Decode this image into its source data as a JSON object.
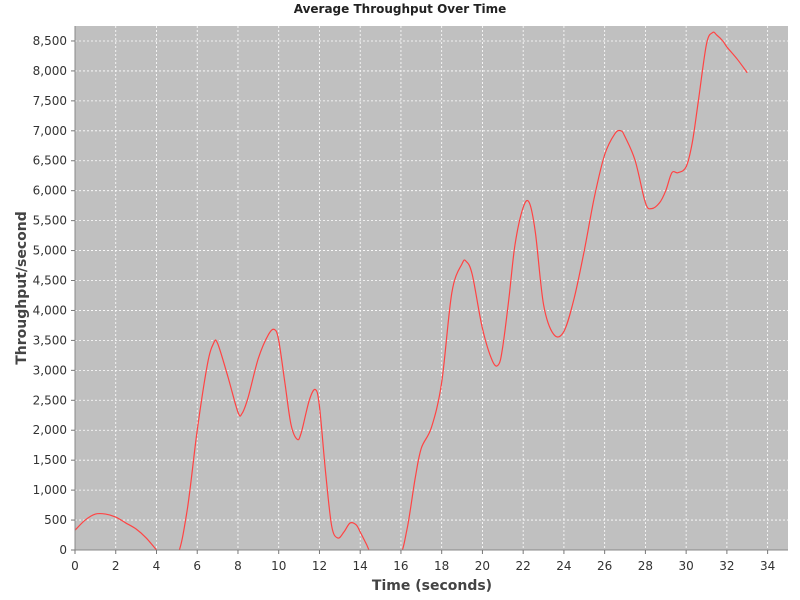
{
  "chart_data": {
    "type": "line",
    "title": "Average Throughput Over Time",
    "xlabel": "Time (seconds)",
    "ylabel": "Throughput/second",
    "xlim": [
      0,
      35
    ],
    "ylim": [
      0,
      8750
    ],
    "x_ticks": [
      0,
      2,
      4,
      6,
      8,
      10,
      12,
      14,
      16,
      18,
      20,
      22,
      24,
      26,
      28,
      30,
      32,
      34
    ],
    "x_tick_labels": [
      "0",
      "2",
      "4",
      "6",
      "8",
      "10",
      "12",
      "14",
      "16",
      "18",
      "20",
      "22",
      "24",
      "26",
      "28",
      "30",
      "32",
      "34"
    ],
    "y_ticks": [
      0,
      500,
      1000,
      1500,
      2000,
      2500,
      3000,
      3500,
      4000,
      4500,
      5000,
      5500,
      6000,
      6500,
      7000,
      7500,
      8000,
      8500
    ],
    "y_tick_labels": [
      "0",
      "500",
      "1,000",
      "1,500",
      "2,000",
      "2,500",
      "3,000",
      "3,500",
      "4,000",
      "4,500",
      "5,000",
      "5,500",
      "6,000",
      "6,500",
      "7,000",
      "7,500",
      "8,000",
      "8,500"
    ],
    "grid": true,
    "legend": "none",
    "colors": {
      "background": "#c0c0c0",
      "line": "#ff4444",
      "grid": "#ffffff"
    },
    "series": [
      {
        "name": "",
        "x": [
          0,
          0.5,
          1,
          1.5,
          2,
          2.5,
          3,
          3.5,
          4,
          4.25,
          5,
          5.5,
          6,
          6.5,
          6.8,
          7,
          7.5,
          8,
          8.2,
          8.5,
          9,
          9.5,
          9.8,
          10,
          10.3,
          10.6,
          10.9,
          11.1,
          11.5,
          11.8,
          12,
          12.3,
          12.6,
          12.9,
          13.2,
          13.5,
          13.8,
          14,
          14.3,
          14.6,
          15,
          15.9,
          16.3,
          16.7,
          17,
          17.5,
          18,
          18.5,
          19,
          19.2,
          19.5,
          20,
          20.5,
          20.8,
          21,
          21.3,
          21.6,
          22,
          22.3,
          22.6,
          23,
          23.5,
          24,
          24.5,
          25,
          25.5,
          26,
          26.5,
          26.8,
          27,
          27.5,
          28,
          28.3,
          28.7,
          29,
          29.3,
          29.6,
          30,
          30.3,
          30.6,
          31,
          31.3,
          31.5,
          31.8,
          32,
          32.5,
          33
        ],
        "y": [
          330,
          500,
          600,
          600,
          550,
          450,
          350,
          200,
          0,
          -100,
          -100,
          650,
          2000,
          3100,
          3450,
          3450,
          2900,
          2300,
          2280,
          2550,
          3200,
          3600,
          3680,
          3500,
          2800,
          2100,
          1850,
          1950,
          2500,
          2680,
          2400,
          1300,
          400,
          200,
          300,
          450,
          420,
          300,
          100,
          -100,
          -100,
          -100,
          350,
          1200,
          1700,
          2050,
          2800,
          4300,
          4780,
          4820,
          4600,
          3700,
          3150,
          3100,
          3400,
          4200,
          5100,
          5720,
          5800,
          5300,
          4100,
          3600,
          3650,
          4200,
          5000,
          5900,
          6600,
          6950,
          7000,
          6900,
          6500,
          5800,
          5700,
          5800,
          6000,
          6300,
          6300,
          6400,
          6800,
          7500,
          8450,
          8640,
          8600,
          8500,
          8400,
          8200,
          7970
        ]
      }
    ]
  }
}
